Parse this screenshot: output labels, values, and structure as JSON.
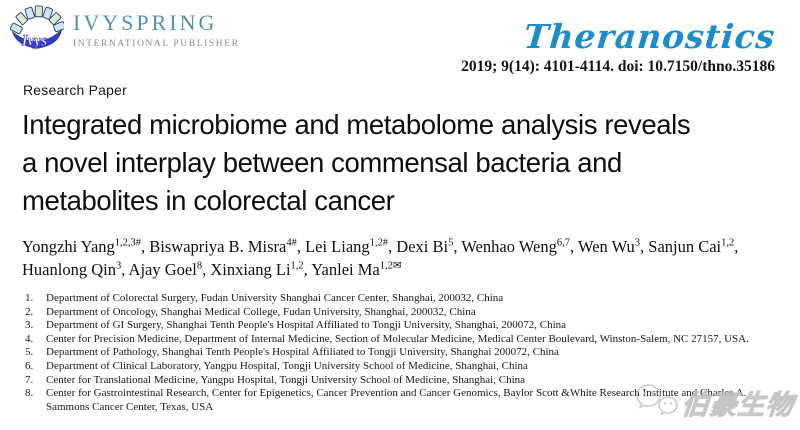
{
  "publisher": {
    "name": "IVYSPRING",
    "subtitle": "INTERNATIONAL PUBLISHER",
    "logo_monogram": "Ivys",
    "brand_color": "#4f93ac"
  },
  "journal": {
    "name": "Theranostics",
    "citation": "2019; 9(14): 4101-4114. doi: 10.7150/thno.35186",
    "brand_color": "#1b8ec9"
  },
  "icons": {
    "corresponding_author": "✉"
  },
  "article": {
    "type_label": "Research Paper",
    "title_lines": [
      "Integrated microbiome and metabolome analysis reveals",
      "a novel interplay between commensal bacteria and",
      "metabolites in colorectal cancer"
    ],
    "authors": [
      {
        "name": "Yongzhi Yang",
        "sup": "1,2,3#"
      },
      {
        "name": "Biswapriya B. Misra",
        "sup": "4#"
      },
      {
        "name": "Lei Liang",
        "sup": "1,2#"
      },
      {
        "name": "Dexi Bi",
        "sup": "5"
      },
      {
        "name": "Wenhao Weng",
        "sup": "6,7"
      },
      {
        "name": "Wen Wu",
        "sup": "3"
      },
      {
        "name": "Sanjun Cai",
        "sup": "1,2"
      },
      {
        "name": "Huanlong Qin",
        "sup": "3"
      },
      {
        "name": "Ajay Goel",
        "sup": "8"
      },
      {
        "name": "Xinxiang Li",
        "sup": "1,2"
      },
      {
        "name": "Yanlei Ma",
        "sup": "1,2",
        "corresponding": true
      }
    ],
    "affiliations": [
      {
        "num": "1.",
        "text": "Department of Colorectal Surgery, Fudan University Shanghai Cancer Center, Shanghai, 200032, China"
      },
      {
        "num": "2.",
        "text": "Department of Oncology, Shanghai Medical College, Fudan University, Shanghai, 200032, China"
      },
      {
        "num": "3.",
        "text": "Department of GI Surgery, Shanghai Tenth People's Hospital Affiliated to Tongji University, Shanghai, 200072, China"
      },
      {
        "num": "4.",
        "text": "Center for Precision Medicine, Department of Internal Medicine, Section of Molecular Medicine, Medical Center Boulevard, Winston-Salem, NC 27157, USA."
      },
      {
        "num": "5.",
        "text": "Department of Pathology, Shanghai Tenth People's Hospital Affiliated to Tongji University, Shanghai 200072, China"
      },
      {
        "num": "6.",
        "text": "Department of Clinical Laboratory, Yangpu Hospital, Tongji University School of Medicine, Shanghai, China"
      },
      {
        "num": "7.",
        "text": "Center for Translational Medicine, Yangpu Hospital, Tongji University School of Medicine, Shanghai, China"
      },
      {
        "num": "8.",
        "text": "Center for Gastrointestinal Research, Center for Epigenetics, Cancer Prevention and Cancer Genomics, Baylor Scott &White Research Institute and Charles A. Sammons Cancer Center, Texas, USA"
      }
    ]
  },
  "watermark": {
    "text": "伯豪生物",
    "icon": "wechat-icon"
  }
}
